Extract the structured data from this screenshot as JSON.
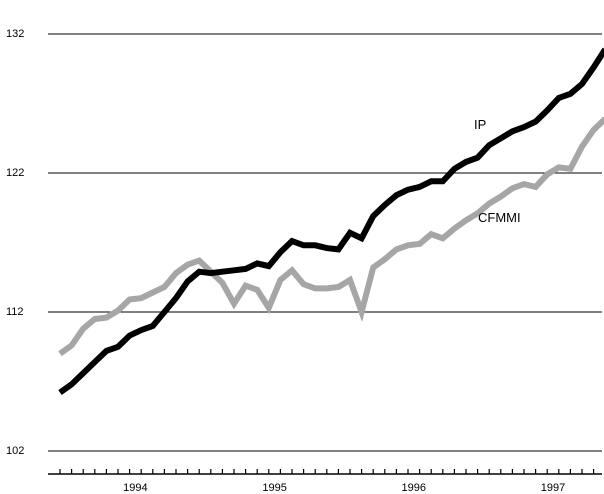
{
  "chart_data": {
    "type": "line",
    "title": "",
    "xlabel": "",
    "ylabel": "",
    "ylim": [
      102,
      132
    ],
    "yticks": [
      102,
      112,
      122,
      132
    ],
    "grid": "horizontal",
    "x_axis": {
      "tick_labels": [
        "1994",
        "1995",
        "1996",
        "1997"
      ],
      "tick_label_months": [
        6.5,
        18.5,
        30.5,
        42.5
      ],
      "months": 48
    },
    "x_month_index": [
      0,
      1,
      2,
      3,
      4,
      5,
      6,
      7,
      8,
      9,
      10,
      11,
      12,
      13,
      14,
      15,
      16,
      17,
      18,
      19,
      20,
      21,
      22,
      23,
      24,
      25,
      26,
      27,
      28,
      29,
      30,
      31,
      32,
      33,
      34,
      35,
      36,
      37,
      38,
      39,
      40,
      41,
      42,
      43,
      44,
      45,
      46,
      47
    ],
    "series": [
      {
        "name": "IP",
        "color": "#000000",
        "values": [
          106.2,
          106.8,
          107.6,
          108.4,
          109.2,
          109.5,
          110.3,
          110.7,
          111.0,
          112.0,
          113.0,
          114.2,
          114.9,
          114.8,
          114.9,
          115.0,
          115.1,
          115.5,
          115.3,
          116.3,
          117.1,
          116.8,
          116.8,
          116.6,
          116.5,
          117.7,
          117.3,
          118.9,
          119.7,
          120.4,
          120.8,
          121.0,
          121.4,
          121.4,
          122.3,
          122.8,
          123.1,
          124.0,
          124.5,
          125.0,
          125.3,
          125.7,
          126.5,
          127.4,
          127.7,
          128.4,
          129.6,
          130.9
        ]
      },
      {
        "name": "CFMMI",
        "color": "#a6a6a6",
        "values": [
          109.0,
          109.6,
          110.8,
          111.5,
          111.6,
          112.1,
          112.9,
          113.0,
          113.4,
          113.8,
          114.8,
          115.4,
          115.7,
          114.9,
          114.1,
          112.6,
          113.9,
          113.6,
          112.3,
          114.3,
          115.0,
          114.0,
          113.7,
          113.7,
          113.8,
          114.3,
          112.0,
          115.2,
          115.8,
          116.5,
          116.8,
          116.9,
          117.6,
          117.3,
          118.0,
          118.6,
          119.1,
          119.8,
          120.3,
          120.9,
          121.2,
          121.0,
          121.9,
          122.4,
          122.3,
          123.9,
          125.1,
          125.9
        ]
      }
    ],
    "annotations": [
      {
        "text": "IP",
        "series": "IP"
      },
      {
        "text": "CFMMI",
        "series": "CFMMI"
      }
    ]
  }
}
